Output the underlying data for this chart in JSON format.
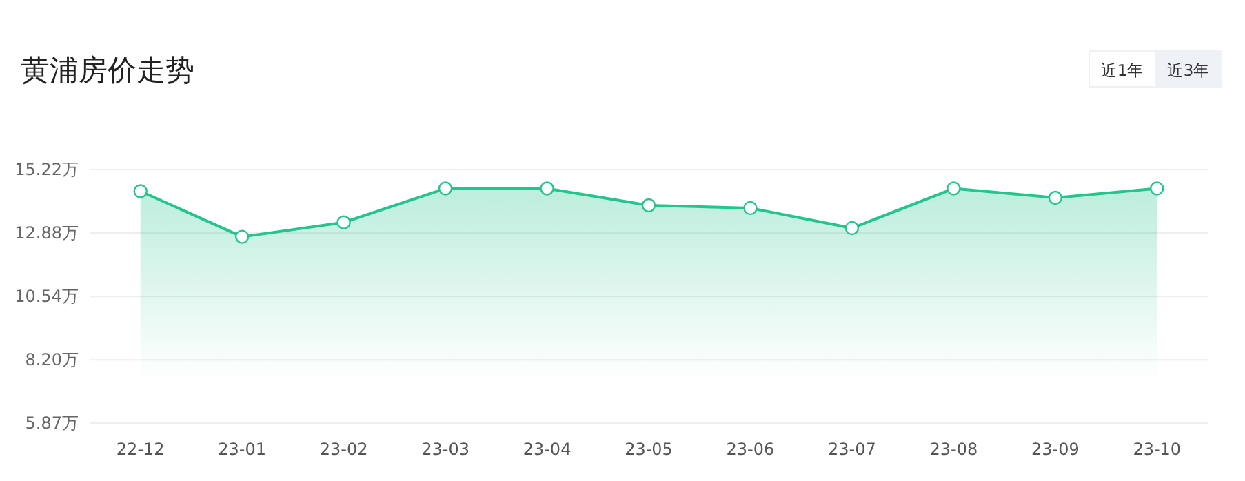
{
  "chart_data": {
    "type": "area",
    "title": "黄浦房价走势",
    "annotations": [
      "近1年",
      "近3年"
    ],
    "categories": [
      "22-12",
      "23-01",
      "23-02",
      "23-03",
      "23-04",
      "23-05",
      "23-06",
      "23-07",
      "23-08",
      "23-09",
      "23-10"
    ],
    "series": [
      {
        "color": "#22c58b",
        "values": [
          14.42,
          12.74,
          13.27,
          14.52,
          14.52,
          13.9,
          13.8,
          13.06,
          14.52,
          14.18,
          14.52
        ]
      }
    ],
    "ylim": [
      5.87,
      15.22
    ],
    "yticks": [
      {
        "value": 5.87,
        "label": "5.87万"
      },
      {
        "value": 8.2,
        "label": "8.20万"
      },
      {
        "value": 10.54,
        "label": "10.54万"
      },
      {
        "value": 12.88,
        "label": "12.88万"
      },
      {
        "value": 15.22,
        "label": "15.22万"
      }
    ],
    "grid": "y",
    "marker": "circle"
  }
}
